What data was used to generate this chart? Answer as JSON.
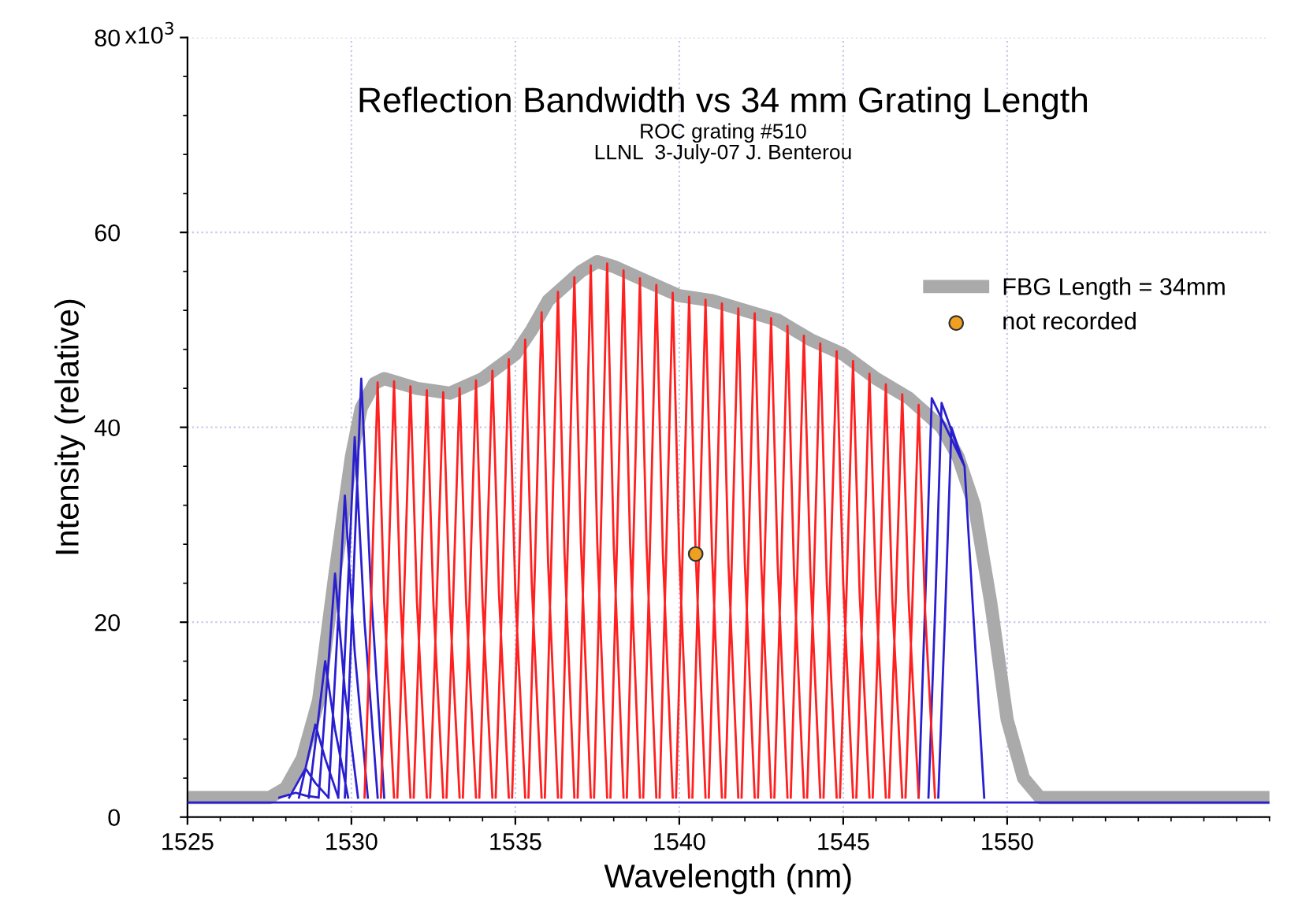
{
  "chart_data": {
    "type": "line",
    "title": "Reflection Bandwidth vs 34 mm Grating Length",
    "subtitle": "ROC grating #510\nLLNL  3-July-07 J. Benterou",
    "xlabel": "Wavelength (nm)",
    "ylabel": "Intensity (relative)",
    "xlim": [
      1525,
      1558
    ],
    "xticks": [
      1525,
      1530,
      1535,
      1540,
      1545,
      1550
    ],
    "ylim": [
      0,
      80
    ],
    "yticks": [
      0,
      20,
      40,
      60,
      80
    ],
    "annotations": [
      "x10$^{3}$"
    ],
    "grid": true,
    "legend": "top right",
    "series": [
      {
        "name": "FBG Length = 34mm",
        "color": "#aaaaaa",
        "x": [
          1525,
          1527.5,
          1528,
          1528.5,
          1529,
          1529.5,
          1530,
          1530.3,
          1530.7,
          1531,
          1532,
          1533,
          1534,
          1535,
          1535.5,
          1536,
          1537,
          1537.5,
          1538,
          1539,
          1540,
          1541,
          1542,
          1543,
          1544,
          1545,
          1546,
          1547,
          1547.5,
          1548,
          1548.5,
          1549,
          1549.5,
          1550,
          1550.5,
          1551,
          1558
        ],
        "values": [
          2,
          2,
          3,
          6,
          12,
          25,
          37,
          42,
          44.5,
          45,
          44,
          43.5,
          45,
          47.5,
          50,
          53,
          56,
          57,
          56.5,
          55,
          53.5,
          53,
          52,
          51,
          49,
          47.5,
          45,
          43,
          41.5,
          40,
          37,
          32,
          22,
          10,
          4,
          2,
          2
        ]
      },
      {
        "color": "#2a1fd0",
        "x": [
          1525,
          1558,
          null,
          1527.8,
          1528.3,
          1528.6,
          1529.0,
          null,
          1528.1,
          1528.6,
          1528.9,
          1529.3,
          null,
          1528.4,
          1528.9,
          1529.2,
          1529.6,
          null,
          1528.7,
          1529.2,
          1529.5,
          1529.9,
          null,
          1529.0,
          1529.5,
          1529.8,
          1530.2,
          null,
          1529.3,
          1529.8,
          1530.1,
          1530.5,
          null,
          1529.6,
          1530.1,
          1530.4,
          1530.8,
          null,
          1529.8,
          1530.3,
          1530.6,
          1531.0,
          null,
          1547.3,
          1547.5,
          1547.7,
          1548.7,
          1549.3,
          null,
          1547.6,
          1547.8,
          1548.0,
          1548.7,
          1549.3,
          null,
          1547.9,
          1548.1,
          1548.3,
          1548.7,
          1549.3
        ],
        "values": [
          1.5,
          1.5,
          null,
          2,
          2.5,
          2.2,
          2,
          null,
          2,
          5,
          3.5,
          2,
          null,
          2,
          9.5,
          6,
          2,
          null,
          2,
          16,
          9,
          2,
          null,
          2,
          25,
          13,
          2,
          null,
          2,
          33,
          17,
          2,
          null,
          2,
          39,
          20,
          2,
          null,
          2,
          45,
          23,
          2,
          null,
          2,
          22,
          43,
          36,
          2,
          null,
          2,
          21,
          42.5,
          36,
          2,
          null,
          2,
          20,
          40,
          36,
          2
        ]
      },
      {
        "color": "#ff2020",
        "x": [
          1530.4,
          1530.6,
          1530.8,
          1531.0,
          1531.3,
          null,
          1530.9,
          1531.1,
          1531.3,
          1531.5,
          1531.8,
          null,
          1531.4,
          1531.6,
          1531.8,
          1532.0,
          1532.3,
          null,
          1531.9,
          1532.1,
          1532.3,
          1532.5,
          1532.8,
          null,
          1532.4,
          1532.6,
          1532.8,
          1533.0,
          1533.3,
          null,
          1532.9,
          1533.1,
          1533.3,
          1533.5,
          1533.8,
          null,
          1533.4,
          1533.6,
          1533.8,
          1534.0,
          1534.3,
          null,
          1533.9,
          1534.1,
          1534.3,
          1534.5,
          1534.8,
          null,
          1534.4,
          1534.6,
          1534.8,
          1535.0,
          1535.3,
          null,
          1534.9,
          1535.1,
          1535.3,
          1535.5,
          1535.8,
          null,
          1535.4,
          1535.6,
          1535.8,
          1536.0,
          1536.3,
          null,
          1535.9,
          1536.1,
          1536.3,
          1536.5,
          1536.8,
          null,
          1536.4,
          1536.6,
          1536.8,
          1537.0,
          1537.3,
          null,
          1536.9,
          1537.1,
          1537.3,
          1537.5,
          1537.8,
          null,
          1537.4,
          1537.6,
          1537.8,
          1538.0,
          1538.3,
          null,
          1537.9,
          1538.1,
          1538.3,
          1538.5,
          1538.8,
          null,
          1538.4,
          1538.6,
          1538.8,
          1539.0,
          1539.3,
          null,
          1538.9,
          1539.1,
          1539.3,
          1539.5,
          1539.8,
          null,
          1539.4,
          1539.6,
          1539.8,
          1540.0,
          1540.3,
          null,
          1539.9,
          1540.1,
          1540.3,
          1540.5,
          1540.8,
          null,
          1540.4,
          1540.6,
          1540.8,
          1541.0,
          1541.3,
          null,
          1540.9,
          1541.1,
          1541.3,
          1541.5,
          1541.8,
          null,
          1541.4,
          1541.6,
          1541.8,
          1542.0,
          1542.3,
          null,
          1541.9,
          1542.1,
          1542.3,
          1542.5,
          1542.8,
          null,
          1542.4,
          1542.6,
          1542.8,
          1543.0,
          1543.3,
          null,
          1542.9,
          1543.1,
          1543.3,
          1543.5,
          1543.8,
          null,
          1543.4,
          1543.6,
          1543.8,
          1544.0,
          1544.3,
          null,
          1543.9,
          1544.1,
          1544.3,
          1544.5,
          1544.8,
          null,
          1544.4,
          1544.6,
          1544.8,
          1545.0,
          1545.3,
          null,
          1544.9,
          1545.1,
          1545.3,
          1545.5,
          1545.8,
          null,
          1545.4,
          1545.6,
          1545.8,
          1546.0,
          1546.3,
          null,
          1545.9,
          1546.1,
          1546.3,
          1546.5,
          1546.8,
          null,
          1546.4,
          1546.6,
          1546.8,
          1547.0,
          1547.3,
          null,
          1546.9,
          1547.1,
          1547.3,
          1547.5,
          1547.8
        ],
        "values": [
          2,
          22,
          44.6,
          22,
          2,
          null,
          2,
          22,
          44.7,
          22,
          2,
          null,
          2,
          22,
          44.2,
          22,
          2,
          null,
          2,
          22,
          43.8,
          22,
          2,
          null,
          2,
          22,
          43.6,
          22,
          2,
          null,
          2,
          22,
          44,
          22,
          2,
          null,
          2,
          22,
          44.8,
          22,
          2,
          null,
          2,
          23,
          45.8,
          23,
          2,
          null,
          2,
          23,
          47,
          23,
          2,
          null,
          2,
          24,
          49,
          24,
          2,
          null,
          2,
          26,
          51.8,
          26,
          2,
          null,
          2,
          27,
          53.9,
          27,
          2,
          null,
          2,
          28,
          55.4,
          28,
          2,
          null,
          2,
          28,
          56.6,
          28,
          2,
          null,
          2,
          28,
          56.8,
          28,
          2,
          null,
          2,
          28,
          56.1,
          28,
          2,
          null,
          2,
          28,
          55.3,
          28,
          2,
          null,
          2,
          27,
          54.6,
          27,
          2,
          null,
          2,
          27,
          53.8,
          27,
          2,
          null,
          2,
          27,
          53.4,
          27,
          2,
          null,
          2,
          27,
          53.1,
          27,
          2,
          null,
          2,
          26,
          52.7,
          26,
          2,
          null,
          2,
          26,
          52.2,
          26,
          2,
          null,
          2,
          26,
          51.7,
          26,
          2,
          null,
          2,
          26,
          51.2,
          26,
          2,
          null,
          2,
          25,
          50.4,
          25,
          2,
          null,
          2,
          25,
          49.4,
          25,
          2,
          null,
          2,
          24,
          48.6,
          24,
          2,
          null,
          2,
          24,
          47.8,
          24,
          2,
          null,
          2,
          23,
          46.8,
          23,
          2,
          null,
          2,
          23,
          45.5,
          23,
          2,
          null,
          2,
          22,
          44.4,
          22,
          2,
          null,
          2,
          22,
          43.4,
          22,
          2,
          null,
          2,
          21,
          42.3,
          21,
          2
        ]
      },
      {
        "name": "not recorded",
        "type": "scatter",
        "color": "#f0a020",
        "marker": "circle",
        "x": [
          1540.5
        ],
        "values": [
          27
        ]
      }
    ]
  }
}
